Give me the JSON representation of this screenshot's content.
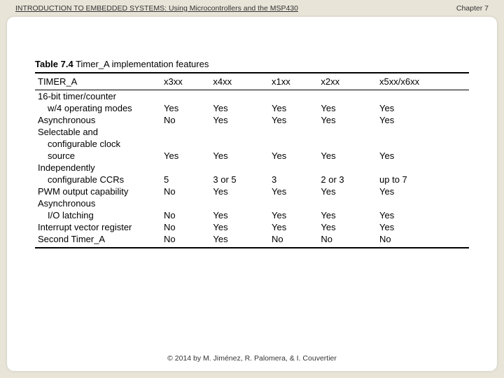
{
  "header": {
    "left": "INTRODUCTION TO EMBEDDED SYSTEMS: Using Microcontrollers and the MSP430",
    "right": "Chapter 7"
  },
  "table": {
    "caption_bold": "Table 7.4",
    "caption_rest": "Timer_A implementation features",
    "header_label": "TIMER_A",
    "columns": [
      "x3xx",
      "x4xx",
      "x1xx",
      "x2xx",
      "x5xx/x6xx"
    ],
    "rows": [
      {
        "lines": [
          "16-bit timer/counter",
          "w/4 operating modes"
        ],
        "cells": [
          "Yes",
          "Yes",
          "Yes",
          "Yes",
          "Yes"
        ]
      },
      {
        "lines": [
          "Asynchronous"
        ],
        "cells": [
          "No",
          "Yes",
          "Yes",
          "Yes",
          "Yes"
        ]
      },
      {
        "lines": [
          "Selectable and",
          "configurable clock",
          "source"
        ],
        "cells": [
          "Yes",
          "Yes",
          "Yes",
          "Yes",
          "Yes"
        ]
      },
      {
        "lines": [
          "Independently",
          "configurable CCRs"
        ],
        "cells": [
          "5",
          "3 or 5",
          "3",
          "2 or 3",
          "up to 7"
        ]
      },
      {
        "lines": [
          "PWM output capability"
        ],
        "cells": [
          "No",
          "Yes",
          "Yes",
          "Yes",
          "Yes"
        ]
      },
      {
        "lines": [
          "Asynchronous",
          "I/O latching"
        ],
        "cells": [
          "No",
          "Yes",
          "Yes",
          "Yes",
          "Yes"
        ]
      },
      {
        "lines": [
          "Interrupt vector register"
        ],
        "cells": [
          "No",
          "Yes",
          "Yes",
          "Yes",
          "Yes"
        ]
      },
      {
        "lines": [
          "Second Timer_A"
        ],
        "cells": [
          "No",
          "Yes",
          "No",
          "No",
          "No"
        ]
      }
    ]
  },
  "footer": {
    "text": "© 2014 by M. Jiménez, R. Palomera, & I. Couvertier"
  }
}
